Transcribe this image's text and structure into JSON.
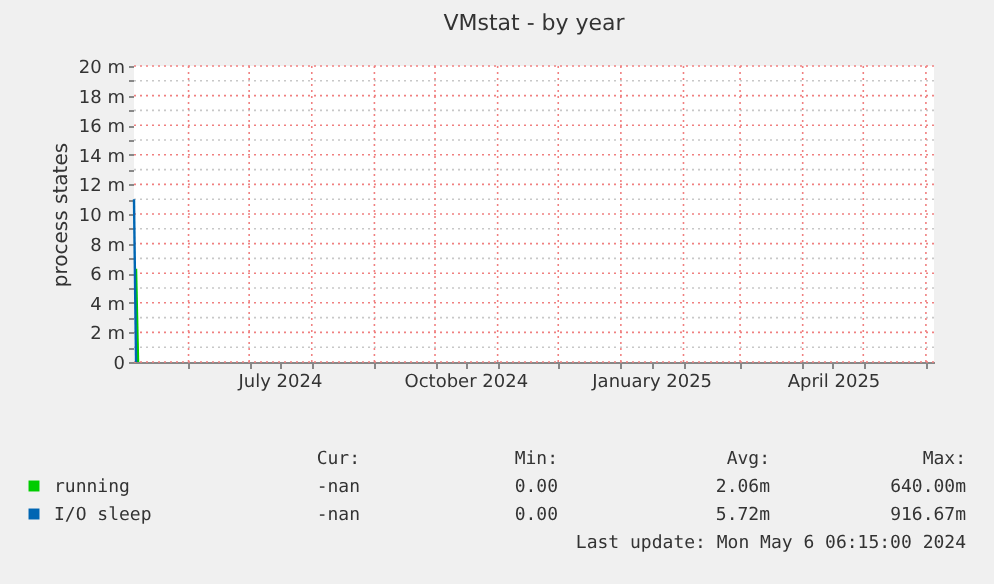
{
  "chart_data": {
    "type": "line",
    "title": "VMstat - by year",
    "ylabel": "process states",
    "xlim": [
      "2024-05-05",
      "2025-06-05"
    ],
    "xticks": [
      {
        "value": "2024-06-01",
        "label": null
      },
      {
        "value": "2024-07-01",
        "label": null
      },
      {
        "value": "2024-07-16",
        "label": "July 2024"
      },
      {
        "value": "2024-08-01",
        "label": null
      },
      {
        "value": "2024-09-01",
        "label": null
      },
      {
        "value": "2024-10-01",
        "label": null
      },
      {
        "value": "2024-10-16",
        "label": "October 2024"
      },
      {
        "value": "2024-11-01",
        "label": null
      },
      {
        "value": "2024-12-01",
        "label": null
      },
      {
        "value": "2025-01-01",
        "label": null
      },
      {
        "value": "2025-01-16",
        "label": "January 2025"
      },
      {
        "value": "2025-02-01",
        "label": null
      },
      {
        "value": "2025-03-01",
        "label": null
      },
      {
        "value": "2025-04-01",
        "label": null
      },
      {
        "value": "2025-04-16",
        "label": "April 2025"
      },
      {
        "value": "2025-05-01",
        "label": null
      },
      {
        "value": "2025-06-01",
        "label": null
      }
    ],
    "ylim": [
      0,
      20
    ],
    "yticks": [
      0,
      {
        "value": 1,
        "label": null
      },
      {
        "value": 2,
        "label": "2 m"
      },
      {
        "value": 3,
        "label": null
      },
      {
        "value": 4,
        "label": "4 m"
      },
      {
        "value": 5,
        "label": null
      },
      {
        "value": 6,
        "label": "6 m"
      },
      {
        "value": 7,
        "label": null
      },
      {
        "value": 8,
        "label": "8 m"
      },
      {
        "value": 9,
        "label": null
      },
      {
        "value": 10,
        "label": "10 m"
      },
      {
        "value": 11,
        "label": null
      },
      {
        "value": 12,
        "label": "12 m"
      },
      {
        "value": 13,
        "label": null
      },
      {
        "value": 14,
        "label": "14 m"
      },
      {
        "value": 15,
        "label": null
      },
      {
        "value": 16,
        "label": "16 m"
      },
      {
        "value": 17,
        "label": null
      },
      {
        "value": 18,
        "label": "18 m"
      },
      {
        "value": 19,
        "label": null
      },
      {
        "value": 20,
        "label": "20 m"
      }
    ],
    "grid": true,
    "legend": "bottom left",
    "series": [
      {
        "name": "running",
        "color": "#00cc00",
        "x": [
          "2024-05-06",
          "2024-05-07"
        ],
        "values": [
          6.3,
          0
        ]
      },
      {
        "name": "I/O sleep",
        "color": "#0066b3",
        "x": [
          "2024-05-05",
          "2024-05-06"
        ],
        "values": [
          11,
          0
        ]
      }
    ],
    "annotations": [
      "Cur:",
      "Min:",
      "Avg:",
      "Max:",
      "-nan",
      "0.00",
      "2.06m",
      "640.00m",
      "-nan",
      "0.00",
      "5.72m",
      "916.67m",
      "Last update: Mon May  6 06:15:00 2024"
    ]
  }
}
